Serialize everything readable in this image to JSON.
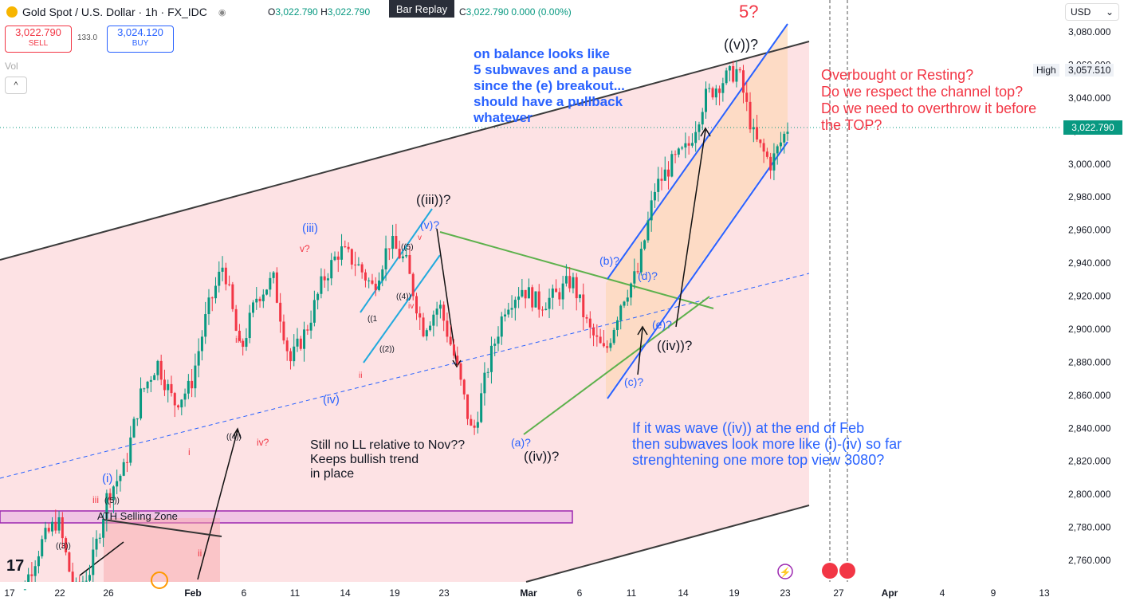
{
  "header": {
    "symbol": "Gold Spot / U.S. Dollar · 1h · FX_IDC",
    "o_label": "O",
    "o_value": "3,022.790",
    "h_label": "H",
    "h_value": "3,022.790",
    "c_label": "C",
    "c_value": "3,022.790",
    "change": "0.000 (0.00%)",
    "replay": "Bar Replay"
  },
  "trade": {
    "sell_price": "3,022.790",
    "sell_label": "SELL",
    "spread": "133.0",
    "buy_price": "3,024.120",
    "buy_label": "BUY"
  },
  "volume_label": "Vol",
  "currency": "USD",
  "high": {
    "label": "High",
    "value": "3,057.510"
  },
  "current_price": "3,022.790",
  "colors": {
    "bull": "#089981",
    "bear": "#f23645",
    "channel_fill": "#fde2e4",
    "blue": "#2962ff",
    "green": "#5db14c",
    "purple": "#9c27b0"
  },
  "chart_data": {
    "type": "candlestick",
    "y_ticks": [
      2760,
      2780,
      2800,
      2820,
      2840,
      2860,
      2880,
      2900,
      2920,
      2940,
      2960,
      2980,
      3000,
      3020,
      3040,
      3060,
      3080
    ],
    "y_tick_labels": [
      "2,760.000",
      "2,780.000",
      "2,800.000",
      "2,820.000",
      "2,840.000",
      "2,860.000",
      "2,880.000",
      "2,900.000",
      "2,920.000",
      "2,940.000",
      "2,960.000",
      "2,980.000",
      "3,000.000",
      "3,020.000",
      "3,040.000",
      "3,060.000",
      "3,080.000"
    ],
    "x_ticks": [
      "17",
      "22",
      "26",
      "Feb",
      "6",
      "11",
      "14",
      "19",
      "23",
      "Mar",
      "6",
      "11",
      "14",
      "19",
      "23",
      "27",
      "Apr",
      "4",
      "9",
      "13"
    ],
    "price_path": [
      [
        "Jan 17",
        2720
      ],
      [
        "Jan 22",
        2745
      ],
      [
        "Jan 24",
        2770
      ],
      [
        "Jan 26",
        2785
      ],
      [
        "Jan 27",
        2740
      ],
      [
        "Jan 29",
        2755
      ],
      [
        "Jan 31",
        2800
      ],
      [
        "Feb 3",
        2815
      ],
      [
        "Feb 4",
        2860
      ],
      [
        "Feb 5",
        2880
      ],
      [
        "Feb 6",
        2855
      ],
      [
        "Feb 7",
        2865
      ],
      [
        "Feb 10",
        2910
      ],
      [
        "Feb 11",
        2940
      ],
      [
        "Feb 12",
        2885
      ],
      [
        "Feb 13",
        2920
      ],
      [
        "Feb 14",
        2930
      ],
      [
        "Feb 14.5",
        2880
      ],
      [
        "Feb 17",
        2900
      ],
      [
        "Feb 18",
        2930
      ],
      [
        "Feb 19",
        2948
      ],
      [
        "Feb 20",
        2940
      ],
      [
        "Feb 21",
        2925
      ],
      [
        "Feb 23",
        2953
      ],
      [
        "Feb 24",
        2940
      ],
      [
        "Feb 25",
        2900
      ],
      [
        "Feb 26",
        2915
      ],
      [
        "Feb 27",
        2880
      ],
      [
        "Feb 28",
        2835
      ],
      [
        "Mar 3",
        2880
      ],
      [
        "Mar 4",
        2915
      ],
      [
        "Mar 5",
        2925
      ],
      [
        "Mar 6",
        2915
      ],
      [
        "Mar 7",
        2920
      ],
      [
        "Mar 9",
        2930
      ],
      [
        "Mar 10",
        2900
      ],
      [
        "Mar 11",
        2885
      ],
      [
        "Mar 12",
        2918
      ],
      [
        "Mar 13",
        2935
      ],
      [
        "Mar 14",
        2985
      ],
      [
        "Mar 16",
        3000
      ],
      [
        "Mar 17",
        3010
      ],
      [
        "Mar 18",
        3040
      ],
      [
        "Mar 19",
        3050
      ],
      [
        "Mar 20",
        3057
      ],
      [
        "Mar 21",
        3015
      ],
      [
        "Mar 22",
        3000
      ],
      [
        "Mar 23",
        3022
      ]
    ],
    "labels": {
      "top_5": "5?",
      "v_top": "((v))?",
      "iii_top": "((iii))?",
      "a": "(a)?",
      "b": "(b)?",
      "c": "(c)?",
      "d": "(d)?",
      "e": "(e)?",
      "iv_feb": "((iv))?",
      "iv_mar": "((iv))?",
      "i_paren": "(i)",
      "iii_paren": "(iii)",
      "iv_paren": "(iv)",
      "v_q": "v?",
      "iii_small": "iii",
      "i_small": "i",
      "ii_small": "ii",
      "iv_q": "iv?",
      "ii_red": "ii",
      "w5_paren": "((5))",
      "w3_paren": "((3))",
      "w4_paren": "((4))",
      "w2_paren": "((2))",
      "w1_paren": "((1",
      "w4b": "((4))",
      "w5b": "((5)",
      "v_paren_q": "(v)?",
      "v_small": "v",
      "iv_small": "iv",
      "iii_small2": "iii",
      "ath": "ATH Selling Zone"
    }
  },
  "notes": {
    "top_blue": "on balance looks like\n5 subwaves and a pause\nsince the (e) breakout...\nshould have a pullback\nwhatever",
    "top_red": "Overbought or Resting?\nDo we respect the channel top?\nDo we need to overthrow it before\nthe TOP?",
    "bottom_blue": "If it was wave ((iv)) at the end of Feb\nthen subwaves look more like (i)-(iv) so far\nstrenghtening one more top view 3080?",
    "middle_black": "Still no LL relative to Nov??\nKeeps bullish trend\nin place"
  }
}
